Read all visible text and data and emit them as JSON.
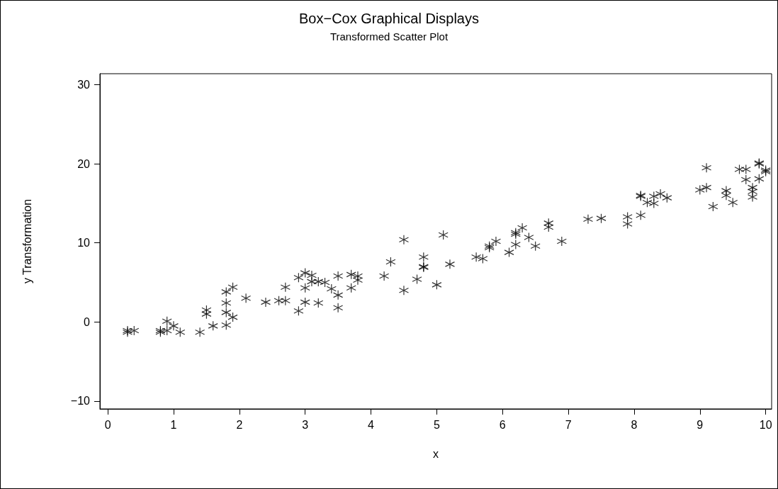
{
  "chart_data": {
    "type": "scatter",
    "title": "Box−Cox Graphical Displays",
    "subtitle": "Transformed Scatter Plot",
    "xlabel": "x",
    "ylabel": "y Transformation",
    "xlim": [
      -0.12,
      10.09
    ],
    "xticks": [
      0,
      1,
      2,
      3,
      4,
      5,
      6,
      7,
      8,
      9,
      10
    ],
    "ylim": [
      -11,
      31.4
    ],
    "yticks": [
      {
        "value": -10,
        "label": "−10"
      },
      0,
      10,
      20,
      30
    ],
    "grid": false,
    "marker": "cross",
    "series": [
      {
        "color": "#000000",
        "x": [
          0.3,
          0.3,
          0.4,
          0.8,
          0.8,
          0.9,
          0.9,
          1.0,
          1.1,
          1.4,
          1.5,
          1.5,
          1.6,
          1.8,
          1.8,
          1.8,
          1.8,
          1.9,
          1.9,
          2.1,
          2.4,
          2.6,
          2.7,
          2.7,
          2.9,
          2.9,
          3.0,
          3.0,
          3.0,
          3.1,
          3.1,
          3.2,
          3.2,
          3.3,
          3.4,
          3.5,
          3.5,
          3.5,
          3.7,
          3.7,
          3.8,
          3.8,
          4.2,
          4.3,
          4.5,
          4.5,
          4.7,
          4.8,
          4.8,
          4.8,
          5.0,
          5.1,
          5.2,
          5.6,
          5.7,
          5.8,
          5.8,
          5.9,
          6.1,
          6.2,
          6.2,
          6.2,
          6.3,
          6.4,
          6.5,
          6.7,
          6.7,
          6.9,
          7.3,
          7.5,
          7.9,
          7.9,
          8.1,
          8.1,
          8.1,
          8.2,
          8.3,
          8.3,
          8.4,
          8.5,
          9.0,
          9.1,
          9.1,
          9.2,
          9.4,
          9.4,
          9.5,
          9.6,
          9.7,
          9.7,
          9.8,
          9.8,
          9.8,
          9.9,
          9.9,
          9.9,
          10.0,
          10.0
        ],
        "values": [
          -1.1,
          -1.3,
          -1.1,
          -1.1,
          -1.3,
          -1.1,
          0.1,
          -0.5,
          -1.3,
          -1.3,
          1.5,
          1.0,
          -0.5,
          -0.4,
          1.2,
          2.4,
          3.8,
          4.4,
          0.6,
          3.0,
          2.5,
          2.7,
          2.7,
          4.4,
          1.4,
          5.6,
          6.2,
          4.3,
          2.5,
          5.9,
          5.1,
          5.1,
          2.4,
          5.0,
          4.2,
          5.8,
          3.4,
          1.8,
          6.0,
          4.3,
          5.8,
          5.3,
          5.8,
          7.6,
          10.4,
          4.0,
          5.4,
          8.2,
          7.0,
          6.9,
          4.7,
          11.0,
          7.3,
          8.2,
          8.0,
          9.4,
          9.6,
          10.2,
          8.8,
          11.3,
          11.1,
          9.8,
          11.9,
          10.7,
          9.6,
          12.5,
          12.0,
          10.2,
          13.0,
          13.1,
          13.3,
          12.4,
          16.0,
          15.9,
          13.5,
          15.1,
          15.9,
          15.0,
          16.2,
          15.7,
          16.7,
          17.0,
          19.5,
          14.6,
          16.6,
          16.0,
          15.1,
          19.3,
          19.3,
          18.0,
          17.0,
          16.5,
          15.8,
          20.1,
          18.1,
          20.0,
          19.2,
          19.0
        ]
      }
    ]
  }
}
